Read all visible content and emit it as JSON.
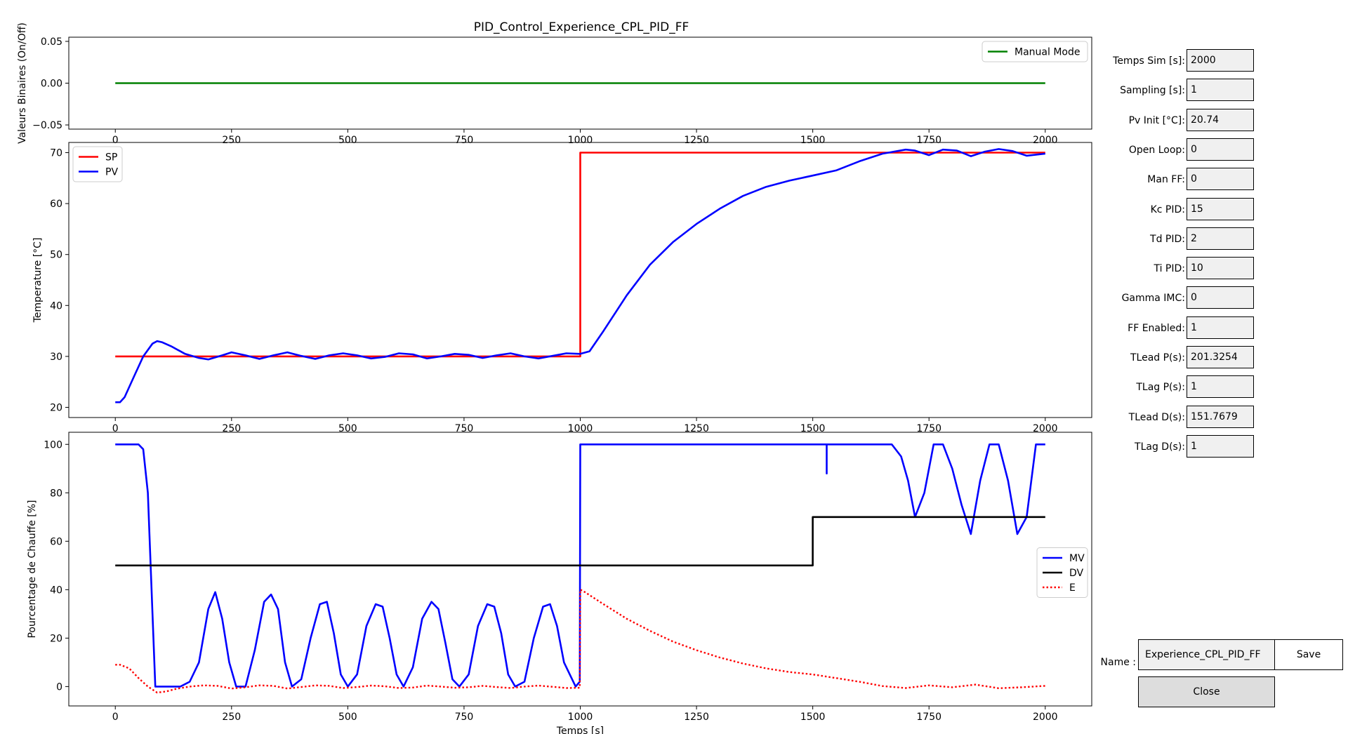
{
  "title": "PID_Control_Experience_CPL_PID_FF",
  "chart_data": [
    {
      "type": "line",
      "ylabel": "Valeurs Binaires (On/Off)",
      "xlim": [
        -100,
        2100
      ],
      "ylim": [
        -0.055,
        0.055
      ],
      "xticks": [
        0,
        250,
        500,
        750,
        1000,
        1250,
        1500,
        1750,
        2000
      ],
      "yticks": [
        -0.05,
        0.0,
        0.05
      ],
      "ytick_labels": [
        "−0.05",
        "0.00",
        "0.05"
      ],
      "legend_position": "upper right",
      "series": [
        {
          "name": "Manual Mode",
          "color": "#008000",
          "style": "solid",
          "x": [
            0,
            2000
          ],
          "y": [
            0,
            0
          ]
        }
      ]
    },
    {
      "type": "line",
      "ylabel": "Temperature [°C]",
      "xlim": [
        -100,
        2100
      ],
      "ylim": [
        18,
        72
      ],
      "xticks": [
        0,
        250,
        500,
        750,
        1000,
        1250,
        1500,
        1750,
        2000
      ],
      "yticks": [
        20,
        30,
        40,
        50,
        60,
        70
      ],
      "legend_position": "upper left",
      "series": [
        {
          "name": "SP",
          "color": "#ff0000",
          "style": "solid",
          "x": [
            0,
            1000,
            1000,
            2000
          ],
          "y": [
            30,
            30,
            70,
            70
          ]
        },
        {
          "name": "PV",
          "color": "#0000ff",
          "style": "solid",
          "x": [
            0,
            10,
            20,
            40,
            60,
            80,
            90,
            100,
            120,
            150,
            180,
            200,
            230,
            250,
            280,
            310,
            340,
            370,
            400,
            430,
            460,
            490,
            520,
            550,
            580,
            610,
            640,
            670,
            700,
            730,
            760,
            790,
            820,
            850,
            880,
            910,
            940,
            970,
            1000,
            1020,
            1050,
            1100,
            1150,
            1200,
            1250,
            1300,
            1350,
            1400,
            1450,
            1500,
            1550,
            1600,
            1650,
            1700,
            1720,
            1750,
            1780,
            1810,
            1840,
            1870,
            1900,
            1930,
            1960,
            1990,
            2000
          ],
          "y": [
            21,
            21,
            22,
            26,
            30,
            32.5,
            33,
            32.8,
            32,
            30.5,
            29.7,
            29.4,
            30.2,
            30.8,
            30.2,
            29.5,
            30.2,
            30.8,
            30.1,
            29.5,
            30.2,
            30.6,
            30.2,
            29.6,
            29.9,
            30.6,
            30.4,
            29.6,
            30,
            30.5,
            30.3,
            29.7,
            30.2,
            30.6,
            30,
            29.6,
            30.1,
            30.6,
            30.5,
            31,
            35,
            42,
            48,
            52.5,
            56,
            59,
            61.5,
            63.3,
            64.5,
            65.5,
            66.5,
            68.3,
            69.8,
            70.6,
            70.4,
            69.5,
            70.6,
            70.4,
            69.3,
            70.2,
            70.7,
            70.3,
            69.4,
            69.7,
            69.8
          ]
        }
      ]
    },
    {
      "type": "line",
      "xlabel": "Temps [s]",
      "ylabel": "Pourcentage de Chauffe [%]",
      "xlim": [
        -100,
        2100
      ],
      "ylim": [
        -8,
        105
      ],
      "xticks": [
        0,
        250,
        500,
        750,
        1000,
        1250,
        1500,
        1750,
        2000
      ],
      "yticks": [
        0,
        20,
        40,
        60,
        80,
        100
      ],
      "legend_position": "center right",
      "series": [
        {
          "name": "MV",
          "color": "#0000ff",
          "style": "solid",
          "x": [
            0,
            50,
            60,
            70,
            80,
            86,
            120,
            140,
            160,
            180,
            200,
            215,
            230,
            245,
            260,
            280,
            300,
            320,
            335,
            350,
            365,
            380,
            400,
            420,
            440,
            455,
            470,
            485,
            500,
            520,
            540,
            560,
            575,
            590,
            605,
            620,
            640,
            660,
            680,
            695,
            710,
            725,
            740,
            760,
            780,
            800,
            815,
            830,
            845,
            860,
            880,
            900,
            920,
            935,
            950,
            965,
            990,
            999,
            1000,
            1530,
            1530,
            1530,
            1530,
            1650,
            1670,
            1690,
            1705,
            1720,
            1740,
            1760,
            1780,
            1800,
            1820,
            1840,
            1860,
            1880,
            1900,
            1920,
            1940,
            1960,
            1980,
            2000
          ],
          "y": [
            100,
            100,
            98,
            80,
            30,
            0,
            0,
            0,
            2,
            10,
            32,
            39,
            28,
            10,
            0,
            0,
            15,
            35,
            38,
            32,
            10,
            0,
            3,
            20,
            34,
            35,
            22,
            5,
            0,
            5,
            25,
            34,
            33,
            20,
            5,
            0,
            8,
            28,
            35,
            32,
            18,
            3,
            0,
            5,
            25,
            34,
            33,
            22,
            5,
            0,
            2,
            20,
            33,
            34,
            25,
            10,
            0,
            2,
            100,
            100,
            88,
            100,
            100,
            100,
            100,
            95,
            85,
            70,
            80,
            100,
            100,
            90,
            75,
            63,
            85,
            100,
            100,
            85,
            63,
            70,
            100,
            100
          ]
        },
        {
          "name": "DV",
          "color": "#000000",
          "style": "solid",
          "x": [
            0,
            1500,
            1500,
            2000
          ],
          "y": [
            50,
            50,
            70,
            70
          ]
        },
        {
          "name": "E",
          "color": "#ff0000",
          "style": "dotted",
          "x": [
            0,
            10,
            30,
            50,
            70,
            90,
            110,
            130,
            160,
            190,
            220,
            250,
            280,
            310,
            340,
            370,
            400,
            430,
            460,
            490,
            520,
            550,
            580,
            610,
            640,
            670,
            700,
            730,
            760,
            790,
            820,
            850,
            880,
            910,
            940,
            970,
            999,
            1000,
            1010,
            1050,
            1100,
            1150,
            1200,
            1250,
            1300,
            1350,
            1400,
            1450,
            1500,
            1550,
            1600,
            1650,
            1700,
            1750,
            1800,
            1850,
            1900,
            1950,
            2000
          ],
          "y": [
            9,
            9,
            7.5,
            3.5,
            0,
            -2.5,
            -2,
            -1,
            0,
            0.5,
            0.3,
            -0.8,
            -0.3,
            0.5,
            0.3,
            -0.8,
            -0.2,
            0.5,
            0.3,
            -0.6,
            -0.2,
            0.4,
            0.1,
            -0.6,
            -0.4,
            0.4,
            0,
            -0.5,
            -0.3,
            0.3,
            -0.2,
            -0.6,
            0,
            0.4,
            -0.1,
            -0.6,
            -0.5,
            40,
            39,
            34,
            28,
            23,
            18.5,
            15,
            12,
            9.5,
            7.5,
            6,
            5,
            3.5,
            2,
            0.2,
            -0.6,
            0.5,
            -0.3,
            0.8,
            -0.7,
            -0.3,
            0.3
          ]
        }
      ]
    }
  ],
  "params": [
    {
      "label": "Temps Sim [s]:",
      "value": "2000"
    },
    {
      "label": "Sampling [s]:",
      "value": "1"
    },
    {
      "label": "Pv Init [°C]:",
      "value": "20.74"
    },
    {
      "label": "Open Loop:",
      "value": "0"
    },
    {
      "label": "Man FF:",
      "value": "0"
    },
    {
      "label": "Kc PID:",
      "value": "15"
    },
    {
      "label": "Td PID:",
      "value": "2"
    },
    {
      "label": "Ti PID:",
      "value": "10"
    },
    {
      "label": "Gamma IMC:",
      "value": "0"
    },
    {
      "label": "FF Enabled:",
      "value": "1"
    },
    {
      "label": "TLead P(s):",
      "value": "201.3254"
    },
    {
      "label": "TLag P(s):",
      "value": "1"
    },
    {
      "label": "TLead D(s):",
      "value": "151.7679"
    },
    {
      "label": "TLag D(s):",
      "value": "1"
    }
  ],
  "save_panel": {
    "name_label": "Name :",
    "name_value": "Experience_CPL_PID_FF",
    "save_label": "Save",
    "close_label": "Close"
  }
}
